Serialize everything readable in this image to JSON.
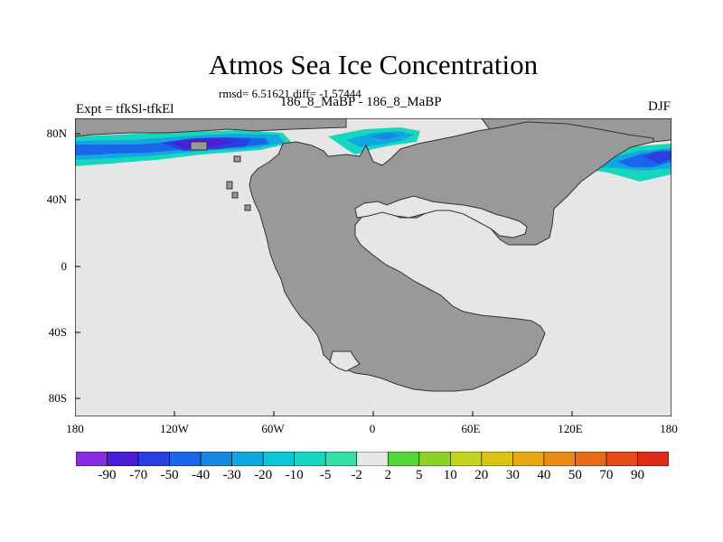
{
  "title": "Atmos Sea Ice Concentration",
  "stats": "rmsd= 6.51621 diff= -1.57444",
  "experiment": "Expt = tfkSl-tfkEl",
  "period": "186_8_MaBP - 186_8_MaBP",
  "season": "DJF",
  "axes": {
    "y_ticks": [
      "80N",
      "40N",
      "0",
      "40S",
      "80S"
    ],
    "x_ticks": [
      "180",
      "120W",
      "60W",
      "0",
      "60E",
      "120E",
      "180"
    ]
  },
  "colors": {
    "land": "#999999",
    "ocean_no_change": "#e6e6e6"
  },
  "colorbar": {
    "labels": [
      "-90",
      "-70",
      "-50",
      "-40",
      "-30",
      "-20",
      "-10",
      "-5",
      "-2",
      "2",
      "5",
      "10",
      "20",
      "30",
      "40",
      "50",
      "70",
      "90"
    ],
    "colors": [
      "#8a2be2",
      "#4b1fd6",
      "#2a3fe0",
      "#1a66e6",
      "#1788e0",
      "#10a8e0",
      "#0fc6d6",
      "#16d6c0",
      "#32e0a8",
      "#e6e6e6",
      "#52d63a",
      "#8ad22a",
      "#c2d41c",
      "#dcc414",
      "#e6a814",
      "#e88a14",
      "#e86a16",
      "#e64a18",
      "#e02a1a"
    ]
  },
  "chart_data": {
    "type": "heatmap",
    "title": "Atmos Sea Ice Concentration",
    "variable": "sea ice concentration difference",
    "lon_range": [
      -180,
      180
    ],
    "lat_range": [
      -90,
      90
    ],
    "contour_levels": [
      -90,
      -70,
      -50,
      -40,
      -30,
      -20,
      -10,
      -5,
      -2,
      2,
      5,
      10,
      20,
      30,
      40,
      50,
      70,
      90
    ],
    "observed_features": [
      {
        "region": "Arctic band between about 150W and 90W, near 70N",
        "approx_min_value": -50
      },
      {
        "region": "Arctic band from about 180 to 30W, 60N-75N",
        "approx_value_range": [
          -40,
          -10
        ]
      },
      {
        "region": "Sea north of NE continent, about 120E to 180, 55N-70N",
        "approx_value_range": [
          -40,
          -5
        ]
      },
      {
        "region": "Rest of ocean",
        "approx_value_range": [
          -2,
          2
        ]
      }
    ]
  }
}
